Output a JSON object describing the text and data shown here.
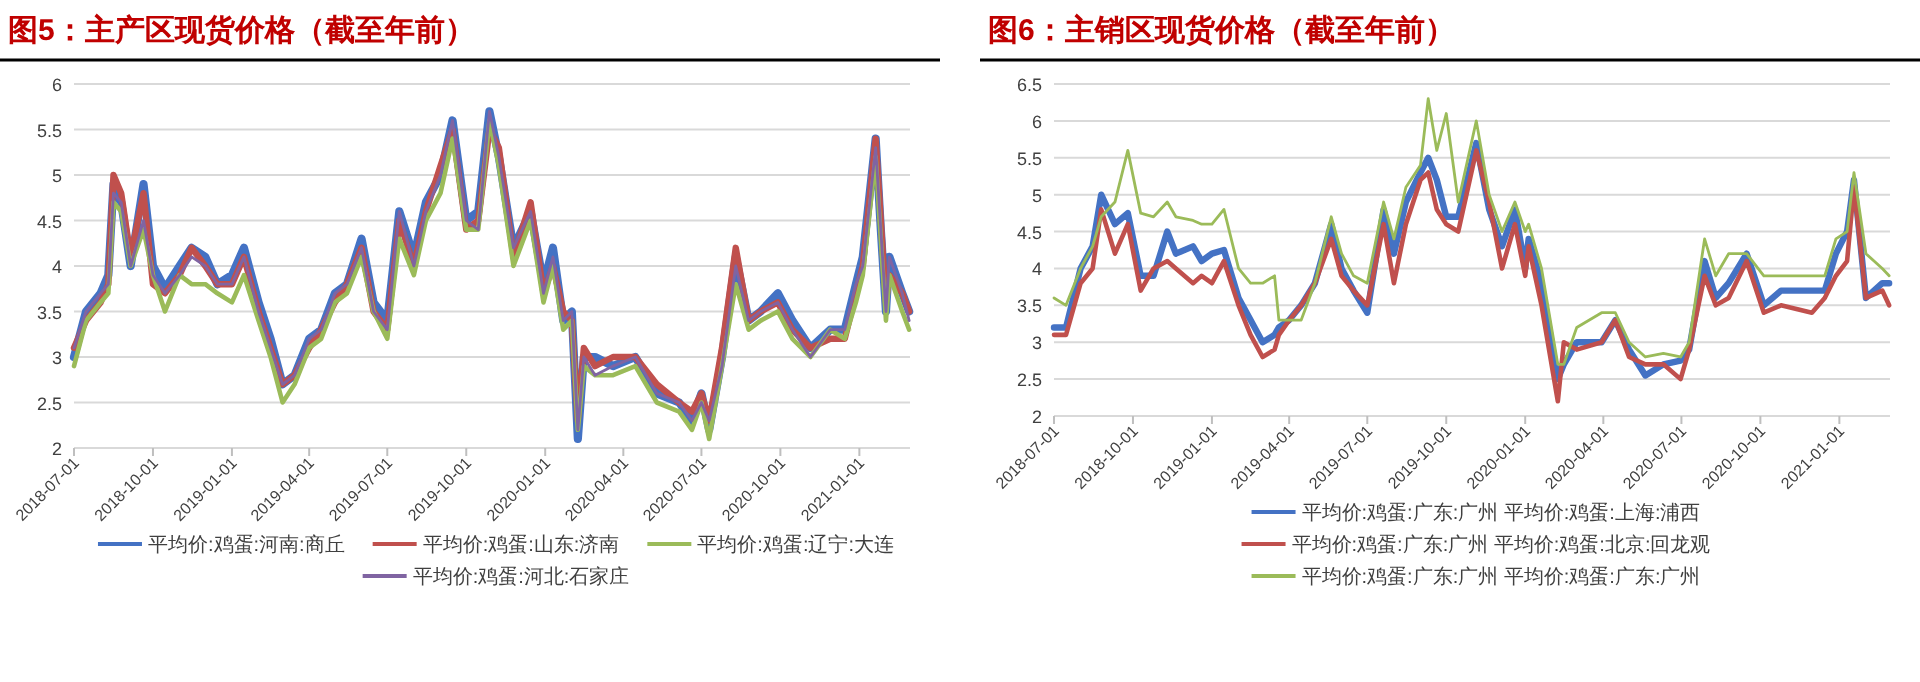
{
  "chart_data": [
    {
      "type": "line",
      "title": "图5：主产区现货价格（截至年前）",
      "xlim": [
        "2018-07-01",
        "2021-03-01"
      ],
      "ylim": [
        2,
        6
      ],
      "yticks": [
        2,
        2.5,
        3,
        3.5,
        4,
        4.5,
        5,
        5.5,
        6
      ],
      "xticks": [
        "2018-07-01",
        "2018-10-01",
        "2019-01-01",
        "2019-04-01",
        "2019-07-01",
        "2019-10-01",
        "2020-01-01",
        "2020-04-01",
        "2020-07-01",
        "2020-10-01",
        "2021-01-01"
      ],
      "grid": "y",
      "legend": "bottom",
      "x": [
        "2018-07-01",
        "2018-07-15",
        "2018-08-01",
        "2018-08-10",
        "2018-08-16",
        "2018-08-25",
        "2018-09-05",
        "2018-09-20",
        "2018-10-01",
        "2018-10-15",
        "2018-11-01",
        "2018-11-15",
        "2018-12-01",
        "2018-12-15",
        "2019-01-01",
        "2019-01-15",
        "2019-02-01",
        "2019-02-15",
        "2019-03-01",
        "2019-03-15",
        "2019-04-01",
        "2019-04-15",
        "2019-05-01",
        "2019-05-15",
        "2019-06-01",
        "2019-06-15",
        "2019-07-01",
        "2019-07-15",
        "2019-08-01",
        "2019-08-15",
        "2019-09-01",
        "2019-09-15",
        "2019-10-01",
        "2019-10-15",
        "2019-10-28",
        "2019-11-08",
        "2019-11-25",
        "2019-12-15",
        "2019-12-30",
        "2020-01-10",
        "2020-01-22",
        "2020-02-01",
        "2020-02-08",
        "2020-02-15",
        "2020-02-28",
        "2020-03-20",
        "2020-04-15",
        "2020-05-10",
        "2020-06-05",
        "2020-06-20",
        "2020-07-01",
        "2020-07-10",
        "2020-07-25",
        "2020-08-10",
        "2020-08-25",
        "2020-09-08",
        "2020-09-28",
        "2020-10-15",
        "2020-11-05",
        "2020-11-28",
        "2020-12-15",
        "2020-12-28",
        "2021-01-05",
        "2021-01-20",
        "2021-01-26",
        "2021-02-01",
        "2021-02-05",
        "2021-02-20",
        "2021-02-28"
      ],
      "series": [
        {
          "name": "平均价:鸡蛋:河南:商丘",
          "color": "#4472c4",
          "values": [
            3.0,
            3.5,
            3.7,
            3.9,
            4.9,
            4.7,
            4.0,
            4.9,
            4.0,
            3.75,
            4.0,
            4.2,
            4.1,
            3.8,
            3.9,
            4.2,
            3.6,
            3.2,
            2.7,
            2.8,
            3.2,
            3.3,
            3.7,
            3.8,
            4.3,
            3.6,
            3.4,
            4.6,
            4.1,
            4.7,
            5.0,
            5.6,
            4.5,
            4.6,
            5.7,
            5.2,
            4.2,
            4.6,
            3.8,
            4.2,
            3.4,
            3.5,
            2.1,
            3.0,
            3.0,
            2.9,
            3.0,
            2.6,
            2.5,
            2.3,
            2.6,
            2.2,
            3.0,
            4.1,
            3.4,
            3.5,
            3.7,
            3.4,
            3.1,
            3.3,
            3.3,
            3.8,
            4.1,
            5.4,
            4.4,
            3.5,
            4.1,
            3.7,
            3.5
          ]
        },
        {
          "name": "平均价:鸡蛋:山东:济南",
          "color": "#c0504d",
          "values": [
            3.1,
            3.4,
            3.6,
            3.8,
            5.0,
            4.8,
            4.1,
            4.8,
            3.8,
            3.7,
            3.9,
            4.2,
            4.0,
            3.8,
            3.8,
            4.1,
            3.5,
            3.1,
            2.7,
            2.8,
            3.1,
            3.3,
            3.6,
            3.8,
            4.2,
            3.5,
            3.3,
            4.5,
            4.0,
            4.6,
            5.1,
            5.5,
            4.4,
            4.5,
            5.5,
            5.3,
            4.1,
            4.7,
            3.7,
            4.0,
            3.5,
            3.4,
            2.3,
            3.1,
            2.9,
            3.0,
            3.0,
            2.7,
            2.5,
            2.4,
            2.6,
            2.3,
            3.1,
            4.2,
            3.4,
            3.5,
            3.6,
            3.3,
            3.1,
            3.2,
            3.2,
            3.7,
            4.0,
            5.4,
            4.5,
            3.6,
            3.9,
            3.7,
            3.5
          ]
        },
        {
          "name": "平均价:鸡蛋:辽宁:大连",
          "color": "#9bbb59",
          "values": [
            2.9,
            3.4,
            3.6,
            3.7,
            4.7,
            4.6,
            4.0,
            4.4,
            3.9,
            3.5,
            3.9,
            3.8,
            3.8,
            3.7,
            3.6,
            3.9,
            3.4,
            3.0,
            2.5,
            2.7,
            3.1,
            3.2,
            3.6,
            3.7,
            4.1,
            3.5,
            3.2,
            4.3,
            3.9,
            4.5,
            4.8,
            5.4,
            4.4,
            4.4,
            5.6,
            5.1,
            4.0,
            4.5,
            3.6,
            4.0,
            3.3,
            3.4,
            2.2,
            2.9,
            2.8,
            2.8,
            2.9,
            2.5,
            2.4,
            2.2,
            2.5,
            2.1,
            2.9,
            3.8,
            3.3,
            3.4,
            3.5,
            3.2,
            3.0,
            3.3,
            3.2,
            3.6,
            3.9,
            5.2,
            4.3,
            3.4,
            3.9,
            3.5,
            3.3
          ]
        },
        {
          "name": "平均价:鸡蛋:河北:石家庄",
          "color": "#8064a2",
          "values": [
            3.1,
            3.5,
            3.7,
            3.8,
            4.8,
            4.7,
            4.0,
            4.5,
            3.9,
            3.7,
            3.9,
            4.1,
            4.0,
            3.8,
            3.8,
            4.1,
            3.5,
            3.1,
            2.7,
            2.8,
            3.2,
            3.3,
            3.7,
            3.8,
            4.2,
            3.5,
            3.3,
            4.6,
            4.0,
            4.6,
            5.0,
            5.6,
            4.5,
            4.4,
            5.7,
            5.2,
            4.2,
            4.6,
            3.7,
            4.1,
            3.4,
            3.5,
            2.2,
            3.0,
            2.8,
            2.9,
            3.0,
            2.6,
            2.5,
            2.3,
            2.5,
            2.3,
            2.9,
            4.0,
            3.4,
            3.5,
            3.6,
            3.3,
            3.0,
            3.3,
            3.3,
            3.8,
            4.0,
            5.3,
            4.4,
            3.5,
            4.1,
            3.7,
            3.4
          ]
        }
      ]
    },
    {
      "type": "line",
      "title": "图6：主销区现货价格（截至年前）",
      "xlim": [
        "2018-07-01",
        "2021-03-01"
      ],
      "ylim": [
        2,
        6.5
      ],
      "yticks": [
        2,
        2.5,
        3,
        3.5,
        4,
        4.5,
        5,
        5.5,
        6,
        6.5
      ],
      "xticks": [
        "2018-07-01",
        "2018-10-01",
        "2019-01-01",
        "2019-04-01",
        "2019-07-01",
        "2019-10-01",
        "2020-01-01",
        "2020-04-01",
        "2020-07-01",
        "2020-10-01",
        "2021-01-01"
      ],
      "grid": "y",
      "legend": "bottom",
      "x": [
        "2018-07-01",
        "2018-07-15",
        "2018-08-01",
        "2018-08-15",
        "2018-08-25",
        "2018-09-10",
        "2018-09-25",
        "2018-10-10",
        "2018-10-25",
        "2018-11-10",
        "2018-11-20",
        "2018-12-10",
        "2018-12-20",
        "2019-01-01",
        "2019-01-15",
        "2019-02-01",
        "2019-02-15",
        "2019-03-01",
        "2019-03-15",
        "2019-03-20",
        "2019-04-01",
        "2019-04-15",
        "2019-05-01",
        "2019-05-20",
        "2019-06-01",
        "2019-06-15",
        "2019-07-01",
        "2019-07-20",
        "2019-08-01",
        "2019-08-15",
        "2019-09-01",
        "2019-09-10",
        "2019-09-20",
        "2019-10-01",
        "2019-10-15",
        "2019-11-05",
        "2019-11-20",
        "2019-12-05",
        "2019-12-20",
        "2020-01-01",
        "2020-01-05",
        "2020-01-20",
        "2020-02-08",
        "2020-02-15",
        "2020-03-01",
        "2020-03-30",
        "2020-04-15",
        "2020-05-01",
        "2020-05-20",
        "2020-06-10",
        "2020-06-30",
        "2020-07-10",
        "2020-07-28",
        "2020-08-10",
        "2020-08-25",
        "2020-09-15",
        "2020-10-05",
        "2020-10-25",
        "2020-11-30",
        "2020-12-15",
        "2020-12-28",
        "2021-01-10",
        "2021-01-18",
        "2021-02-01",
        "2021-02-20",
        "2021-02-28"
      ],
      "series": [
        {
          "name": "平均价:鸡蛋:广东:广州 平均价:鸡蛋:上海:浦西",
          "color": "#4472c4",
          "values": [
            3.2,
            3.2,
            4.0,
            4.3,
            5.0,
            4.6,
            4.75,
            3.9,
            3.9,
            4.5,
            4.2,
            4.3,
            4.1,
            4.2,
            4.25,
            3.6,
            3.3,
            3.0,
            3.1,
            3.2,
            3.3,
            3.5,
            3.8,
            4.6,
            4.0,
            3.7,
            3.4,
            4.8,
            4.2,
            4.9,
            5.3,
            5.5,
            5.2,
            4.7,
            4.7,
            5.7,
            4.8,
            4.3,
            4.8,
            4.0,
            4.4,
            3.8,
            2.5,
            2.7,
            3.0,
            3.0,
            3.3,
            2.9,
            2.55,
            2.7,
            2.75,
            2.9,
            4.1,
            3.6,
            3.8,
            4.2,
            3.5,
            3.7,
            3.7,
            3.7,
            4.2,
            4.5,
            5.2,
            3.6,
            3.8,
            3.8
          ]
        },
        {
          "name": "平均价:鸡蛋:广东:广州 平均价:鸡蛋:北京:回龙观",
          "color": "#c0504d",
          "values": [
            3.1,
            3.1,
            3.8,
            4.0,
            4.8,
            4.2,
            4.6,
            3.7,
            4.0,
            4.1,
            4.0,
            3.8,
            3.9,
            3.8,
            4.1,
            3.5,
            3.1,
            2.8,
            2.9,
            3.1,
            3.3,
            3.5,
            3.8,
            4.4,
            3.9,
            3.7,
            3.5,
            4.6,
            3.8,
            4.6,
            5.2,
            5.3,
            4.8,
            4.6,
            4.5,
            5.6,
            4.9,
            4.0,
            4.6,
            3.9,
            4.3,
            3.5,
            2.2,
            3.0,
            2.9,
            3.0,
            3.3,
            2.8,
            2.7,
            2.7,
            2.5,
            2.9,
            3.9,
            3.5,
            3.6,
            4.1,
            3.4,
            3.5,
            3.4,
            3.6,
            3.9,
            4.1,
            5.1,
            3.6,
            3.7,
            3.5
          ]
        },
        {
          "name": "平均价:鸡蛋:广东:广州 平均价:鸡蛋:广东:广州",
          "color": "#9bbb59",
          "values": [
            3.6,
            3.5,
            4.0,
            4.3,
            4.7,
            4.9,
            5.6,
            4.75,
            4.7,
            4.9,
            4.7,
            4.65,
            4.6,
            4.6,
            4.8,
            4.0,
            3.8,
            3.8,
            3.9,
            3.3,
            3.3,
            3.3,
            3.8,
            4.7,
            4.2,
            3.9,
            3.8,
            4.9,
            4.4,
            5.1,
            5.4,
            6.3,
            5.6,
            6.1,
            4.9,
            6.0,
            5.0,
            4.5,
            4.9,
            4.5,
            4.6,
            4.0,
            2.7,
            2.7,
            3.2,
            3.4,
            3.4,
            3.0,
            2.8,
            2.85,
            2.8,
            3.0,
            4.4,
            3.9,
            4.2,
            4.2,
            3.9,
            3.9,
            3.9,
            3.9,
            4.4,
            4.5,
            5.3,
            4.2,
            4.0,
            3.9
          ]
        }
      ]
    }
  ]
}
